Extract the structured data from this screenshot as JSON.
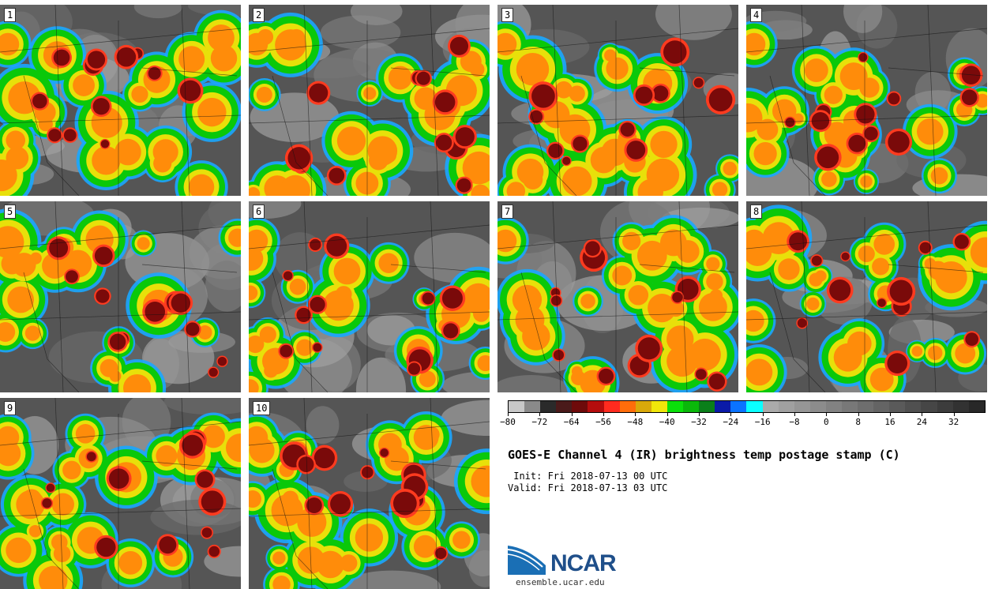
{
  "panels": [
    {
      "label": "1"
    },
    {
      "label": "2"
    },
    {
      "label": "3"
    },
    {
      "label": "4"
    },
    {
      "label": "5"
    },
    {
      "label": "6"
    },
    {
      "label": "7"
    },
    {
      "label": "8"
    },
    {
      "label": "9"
    },
    {
      "label": "10"
    }
  ],
  "colorbar": {
    "colors": [
      "#c8c8c8",
      "#8a8a8a",
      "#2a2a2a",
      "#4a1a1a",
      "#6e0a0a",
      "#b50d0d",
      "#ff2b1f",
      "#ff6d0a",
      "#d9a90a",
      "#f0e60a",
      "#0ae00a",
      "#0ab80a",
      "#0a7f1a",
      "#0a1aa8",
      "#0a73ff",
      "#0affff",
      "#aaaaaa",
      "#a0a0a0",
      "#969696",
      "#8c8c8c",
      "#828282",
      "#787878",
      "#6e6e6e",
      "#646464",
      "#5a5a5a",
      "#505050",
      "#464646",
      "#3c3c3c",
      "#323232",
      "#282828"
    ],
    "tick_labels": [
      "−80",
      "−72",
      "−64",
      "−56",
      "−48",
      "−40",
      "−32",
      "−24",
      "−16",
      "−8",
      "0",
      "8",
      "16",
      "24",
      "32"
    ],
    "tick_values": [
      -80,
      -72,
      -64,
      -56,
      -48,
      -40,
      -32,
      -24,
      -16,
      -8,
      0,
      8,
      16,
      24,
      32
    ],
    "vmin": -80,
    "vmax": 40
  },
  "title": "GOES-E Channel 4 (IR) brightness temp postage stamp (C)",
  "init": " Init: Fri 2018-07-13 00 UTC",
  "valid": "Valid: Fri 2018-07-13 03 UTC",
  "logo": {
    "text": "NCAR",
    "color": "#1f4f8a",
    "swoosh_color": "#1a6fb5"
  },
  "site": "ensemble.ucar.edu"
}
